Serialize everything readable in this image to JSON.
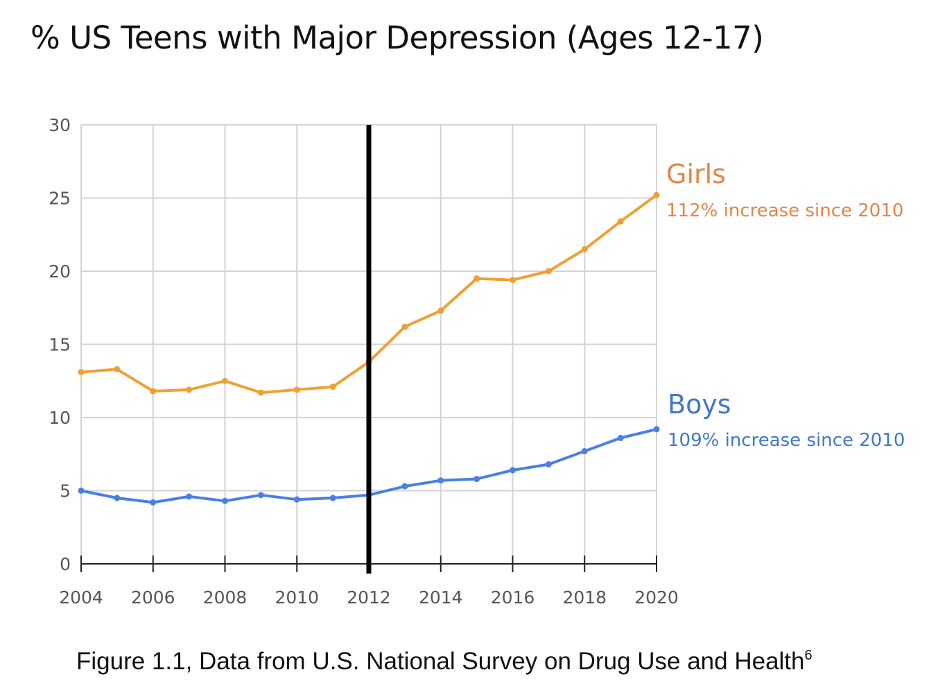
{
  "title": "% US Teens with Major Depression (Ages 12-17)",
  "caption": {
    "text": "Figure 1.1, Data from U.S. National Survey on Drug Use and Health",
    "footnote": "6"
  },
  "colors": {
    "girls": "#f0a032",
    "girls_label": "#e0874a",
    "boys": "#4a80e0",
    "boys_label": "#3f78c8",
    "grid": "#d3d3d3",
    "axis": "#222222",
    "marker_line": "#000000",
    "tick_text": "#555555"
  },
  "chart_data": {
    "type": "line",
    "title": "% US Teens with Major Depression (Ages 12-17)",
    "xlabel": "",
    "ylabel": "",
    "x": [
      2004,
      2005,
      2006,
      2007,
      2008,
      2009,
      2010,
      2011,
      2012,
      2013,
      2014,
      2015,
      2016,
      2017,
      2018,
      2019,
      2020
    ],
    "xlim": [
      2004,
      2020
    ],
    "ylim": [
      0,
      30
    ],
    "x_ticks": [
      "2004",
      "2006",
      "2008",
      "2010",
      "2012",
      "2014",
      "2016",
      "2018",
      "2020"
    ],
    "y_ticks": [
      "0",
      "5",
      "10",
      "15",
      "20",
      "25",
      "30"
    ],
    "grid": true,
    "vertical_marker": 2012,
    "series": [
      {
        "name": "Girls",
        "annotation": "112% increase since 2010",
        "values": [
          13.1,
          13.3,
          11.8,
          11.9,
          12.5,
          11.7,
          11.9,
          12.1,
          13.8,
          16.2,
          17.3,
          19.5,
          19.4,
          20.0,
          21.5,
          23.4,
          25.2
        ]
      },
      {
        "name": "Boys",
        "annotation": "109% increase since 2010",
        "values": [
          5.0,
          4.5,
          4.2,
          4.6,
          4.3,
          4.7,
          4.4,
          4.5,
          4.7,
          5.3,
          5.7,
          5.8,
          6.4,
          6.8,
          7.7,
          8.6,
          9.2
        ]
      }
    ]
  }
}
